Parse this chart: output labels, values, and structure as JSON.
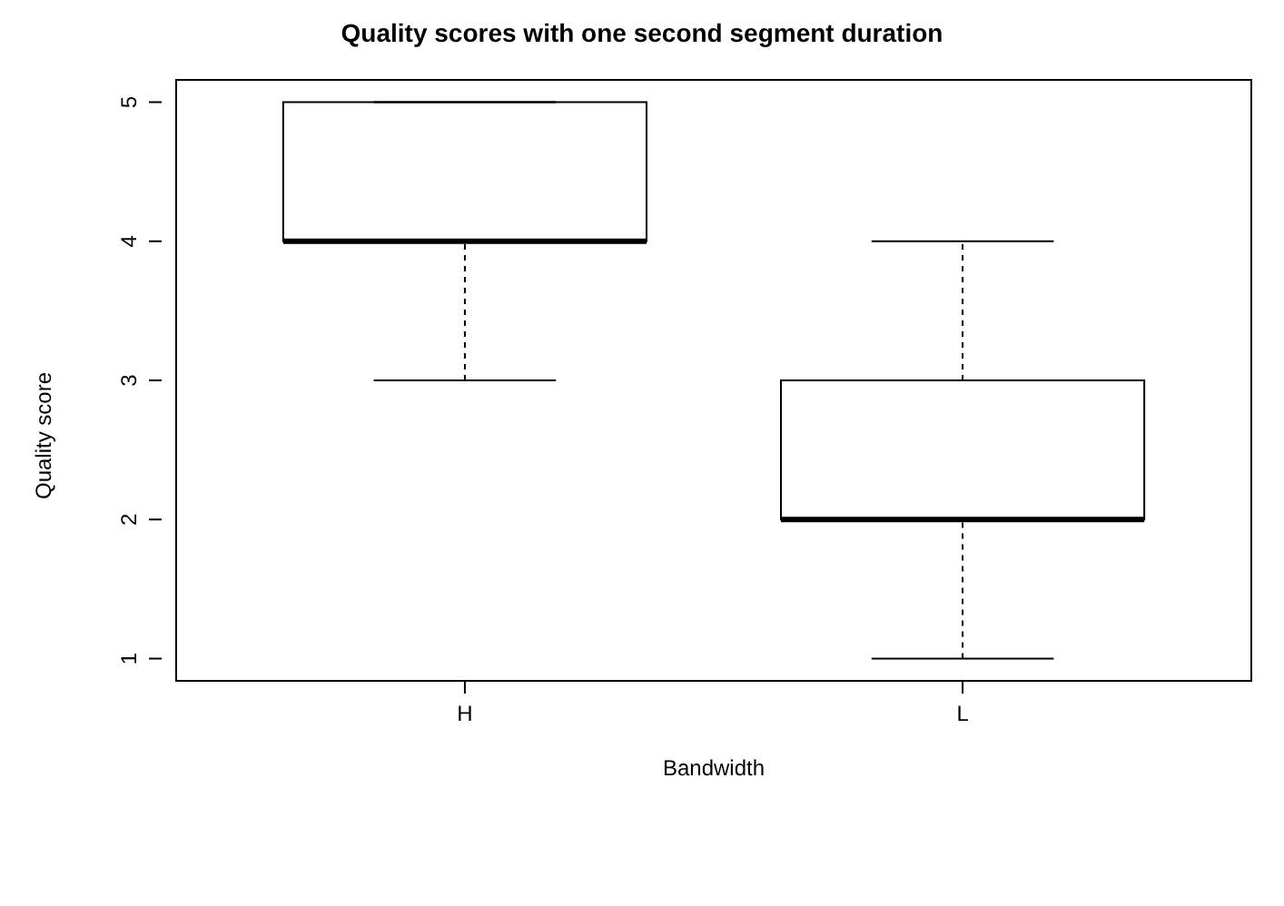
{
  "chart_data": {
    "type": "box",
    "title": "Quality scores with one second segment duration",
    "xlabel": "Bandwidth",
    "ylabel": "Quality score",
    "categories": [
      "H",
      "L"
    ],
    "boxes": [
      {
        "low": 3,
        "q1": 4,
        "median": 4,
        "q3": 5,
        "high": 5
      },
      {
        "low": 1,
        "q1": 2,
        "median": 2,
        "q3": 3,
        "high": 4
      }
    ],
    "ylim": [
      0.84,
      5.16
    ],
    "yticks": [
      1,
      2,
      3,
      4,
      5
    ],
    "grid": false
  }
}
